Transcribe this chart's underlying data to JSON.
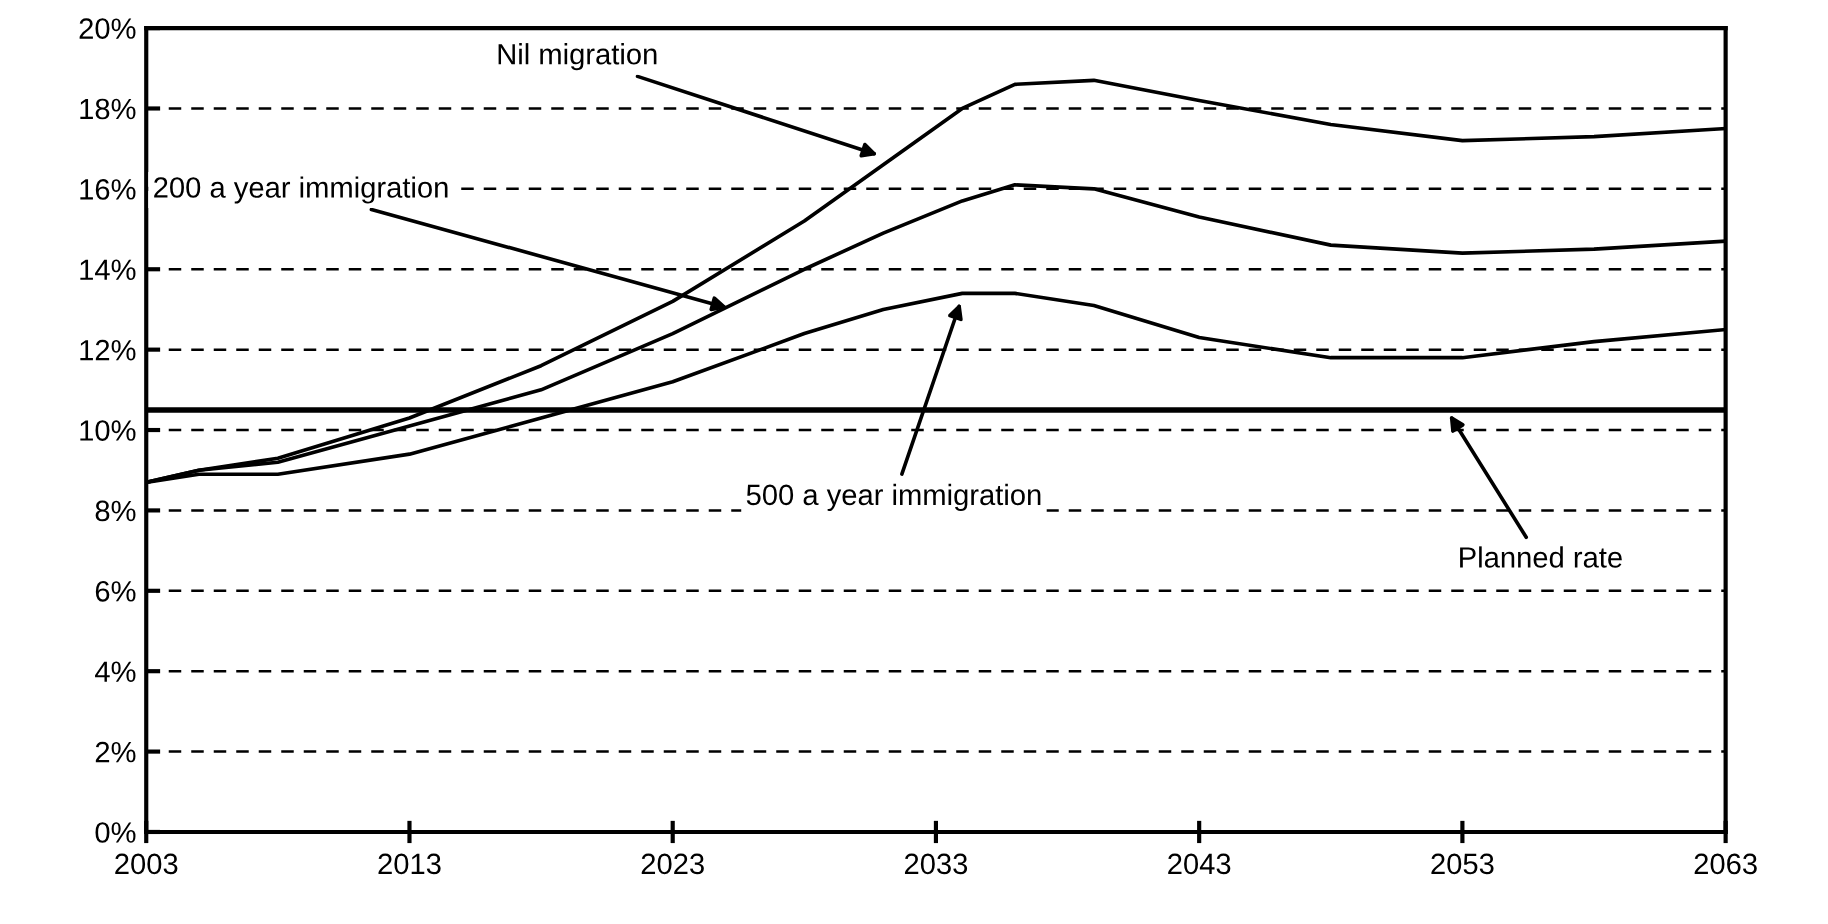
{
  "chart_data": {
    "type": "line",
    "x": [
      2003,
      2005,
      2008,
      2013,
      2018,
      2023,
      2028,
      2031,
      2034,
      2036,
      2039,
      2043,
      2048,
      2053,
      2058,
      2063
    ],
    "series": [
      {
        "color": "#000000",
        "values": [
          8.7,
          9.0,
          9.3,
          10.3,
          11.6,
          13.2,
          15.2,
          16.6,
          18.0,
          18.6,
          18.7,
          18.2,
          17.6,
          17.2,
          17.3,
          17.5
        ]
      },
      {
        "color": "#000000",
        "values": [
          8.7,
          9.0,
          9.2,
          10.1,
          11.0,
          12.4,
          14.0,
          14.9,
          15.7,
          16.1,
          16.0,
          15.3,
          14.6,
          14.4,
          14.5,
          14.7
        ]
      },
      {
        "color": "#000000",
        "values": [
          8.7,
          8.9,
          8.9,
          9.4,
          10.3,
          11.2,
          12.4,
          13.0,
          13.4,
          13.4,
          13.1,
          12.3,
          11.8,
          11.8,
          12.2,
          12.5
        ]
      }
    ],
    "xlim": [
      2003,
      2063
    ],
    "xticks": [
      2003,
      2013,
      2023,
      2033,
      2043,
      2053,
      2063
    ],
    "ylim": [
      0,
      20
    ],
    "yticks": [
      {
        "value": 0,
        "label": "0%"
      },
      {
        "value": 2,
        "label": "2%"
      },
      {
        "value": 4,
        "label": "4%"
      },
      {
        "value": 6,
        "label": "6%"
      },
      {
        "value": 8,
        "label": "8%"
      },
      {
        "value": 10,
        "label": "10%"
      },
      {
        "value": 12,
        "label": "12%"
      },
      {
        "value": 14,
        "label": "14%"
      },
      {
        "value": 16,
        "label": "16%"
      },
      {
        "value": 18,
        "label": "18%"
      },
      {
        "value": 20,
        "label": "20%"
      }
    ],
    "grid": "y",
    "ref_lines": [
      {
        "axis": "y",
        "value": 10.5,
        "color": "#000000",
        "line_style": "solid"
      }
    ],
    "annotations": [
      {
        "text": "Nil migration",
        "x": 2031,
        "y": 16.8
      },
      {
        "text": "200 a year immigration",
        "x": 2025.3,
        "y": 13.0
      },
      {
        "text": "500 a year immigration",
        "x": 2034,
        "y": 13.3
      },
      {
        "text": "Planned rate",
        "x": 2052.4,
        "y": 10.5
      }
    ],
    "marker": "none",
    "line_style": "solid"
  }
}
